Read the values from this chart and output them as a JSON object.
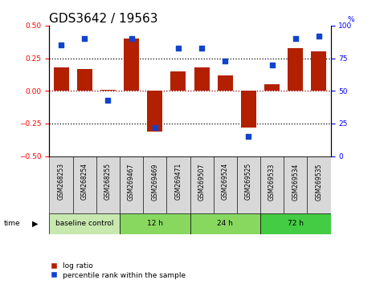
{
  "title": "GDS3642 / 19563",
  "samples": [
    "GSM268253",
    "GSM268254",
    "GSM268255",
    "GSM269467",
    "GSM269469",
    "GSM269471",
    "GSM269507",
    "GSM269524",
    "GSM269525",
    "GSM269533",
    "GSM269534",
    "GSM269535"
  ],
  "log_ratio": [
    0.18,
    0.17,
    0.01,
    0.4,
    -0.31,
    0.15,
    0.18,
    0.12,
    -0.28,
    0.05,
    0.33,
    0.3
  ],
  "percentile_rank": [
    85,
    90,
    43,
    90,
    22,
    83,
    83,
    73,
    15,
    70,
    90,
    92
  ],
  "ylim_left": [
    -0.5,
    0.5
  ],
  "ylim_right": [
    0,
    100
  ],
  "yticks_left": [
    -0.5,
    -0.25,
    0.0,
    0.25,
    0.5
  ],
  "yticks_right": [
    0,
    25,
    50,
    75,
    100
  ],
  "hline_dotted": [
    0.25,
    -0.25
  ],
  "hline_red": 0.0,
  "bar_color": "#b22000",
  "scatter_color": "#1144cc",
  "background_color": "#ffffff",
  "groups": [
    {
      "label": "baseline control",
      "start": 0,
      "end": 3,
      "color": "#c8e8b0"
    },
    {
      "label": "12 h",
      "start": 3,
      "end": 6,
      "color": "#88d860"
    },
    {
      "label": "24 h",
      "start": 6,
      "end": 9,
      "color": "#88d860"
    },
    {
      "label": "72 h",
      "start": 9,
      "end": 12,
      "color": "#44cc44"
    }
  ],
  "time_label": "time",
  "legend_bar_label": "log ratio",
  "legend_scatter_label": "percentile rank within the sample",
  "title_fontsize": 11,
  "tick_fontsize": 6.5,
  "label_fontsize": 7,
  "pct_suffix": "%"
}
